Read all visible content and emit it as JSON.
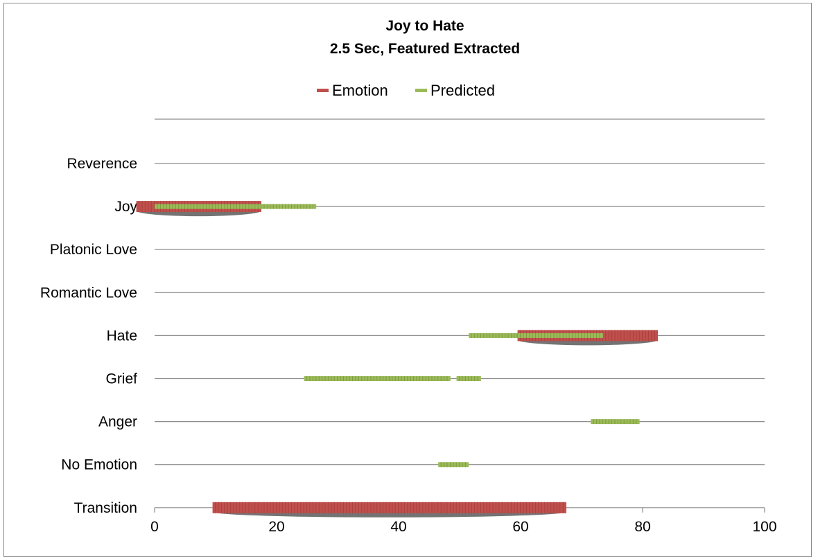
{
  "chart_data": {
    "type": "bar",
    "title": "Joy to Hate",
    "subtitle": "2.5 Sec, Featured Extracted",
    "categories": [
      "Reverence",
      "Joy",
      "Platonic Love",
      "Romantic Love",
      "Hate",
      "Grief",
      "Anger",
      "No Emotion",
      "Transition"
    ],
    "xlim": [
      0,
      100
    ],
    "xticks": [
      "0",
      "20",
      "40",
      "60",
      "80",
      "100"
    ],
    "grid": true,
    "legend_position": "top",
    "series": [
      {
        "name": "Emotion",
        "color": "#c0504d",
        "segments": [
          {
            "category": "Joy",
            "start": -3,
            "end": 17.5
          },
          {
            "category": "Hate",
            "start": 59.5,
            "end": 82.5
          },
          {
            "category": "Transition",
            "start": 9.5,
            "end": 67.5
          }
        ]
      },
      {
        "name": "Predicted",
        "color": "#9bbb59",
        "segments": [
          {
            "category": "Joy",
            "start": 0,
            "end": 26.5
          },
          {
            "category": "Hate",
            "start": 51.5,
            "end": 73.5
          },
          {
            "category": "Grief",
            "start": 24.5,
            "end": 48.5
          },
          {
            "category": "Grief",
            "start": 49.5,
            "end": 53.5
          },
          {
            "category": "Anger",
            "start": 71.5,
            "end": 79.5
          },
          {
            "category": "No Emotion",
            "start": 46.5,
            "end": 51.5
          }
        ]
      }
    ]
  }
}
